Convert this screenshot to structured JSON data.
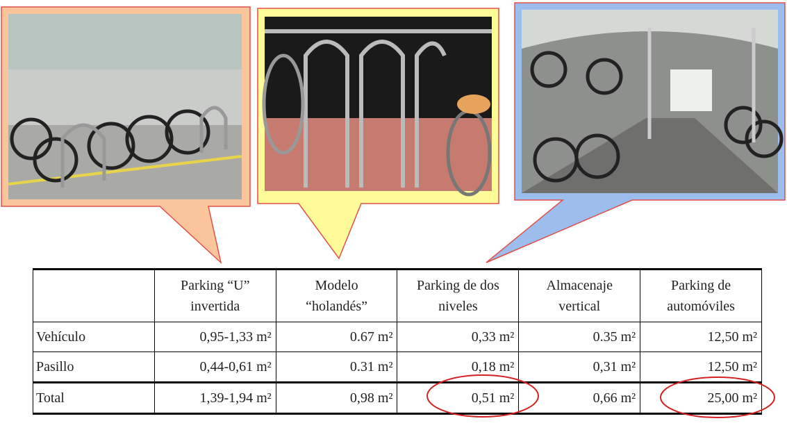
{
  "table": {
    "columns": [
      "Parking “U” invertida",
      "Modelo “holandés”",
      "Parking de dos niveles",
      "Almacenaje vertical",
      "Parking de automóviles"
    ],
    "rows": [
      [
        "Vehículo",
        "0,95-1,33 m²",
        "0.67 m²",
        "0,33 m²",
        "0.35 m²",
        "12,50 m²"
      ],
      [
        "Pasillo",
        "0,44-0,61 m²",
        "0.31 m²",
        "0,18 m²",
        "0,31 m²",
        "12,50 m²"
      ],
      [
        "Total",
        "1,39-1,94 m²",
        "0,98 m²",
        "0,51 m²",
        "0,66 m²",
        "25,00 m²"
      ]
    ]
  }
}
